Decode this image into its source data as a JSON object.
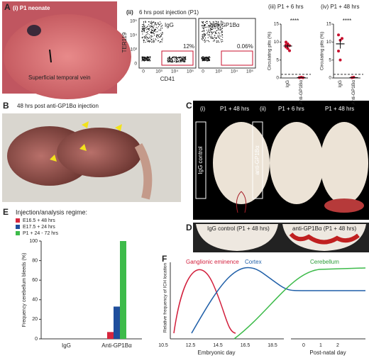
{
  "panels": {
    "A": {
      "label": "A",
      "i": "(i) P1 neonate",
      "vein": "Superficial temporal vein",
      "ii": "(ii)",
      "ii_title": "6 hrs post injection (P1)",
      "ylabel": "TER119",
      "xlabel": "CD41",
      "plot1": "IgG",
      "plot2": "anti-GP1Bα",
      "pct1": "12%",
      "pct2": "0.06%",
      "yticks": [
        "10⁵",
        "10⁴",
        "10³",
        "0"
      ],
      "xticks": [
        "0",
        "10³",
        "10⁴",
        "10⁵"
      ]
    },
    "B": {
      "label": "B",
      "title": "48 hrs post anti-GP1Bα injection"
    },
    "C": {
      "label": "C",
      "i": "(i)",
      "ii": "(ii)",
      "t1": "P1 + 48 hrs",
      "t2": "P1 + 6 hrs",
      "t3": "P1 + 48 hrs",
      "row1": "IgG control",
      "row2": "anti-GP1Bα"
    },
    "D": {
      "label": "D",
      "t1": "IgG control (P1 + 48 hrs)",
      "t2": "anti-GP1Bα (P1 + 48 hrs)"
    },
    "E": {
      "label": "E"
    },
    "F": {
      "label": "F",
      "ylabel": "Relative frequency of ICH location",
      "curves": [
        "Ganglionic eminence",
        "Cortex",
        "Cerebellum"
      ],
      "embryonic_ticks": [
        10.5,
        12.5,
        14.5,
        16.5,
        18.5
      ],
      "postnatal_ticks": [
        0,
        1,
        2
      ],
      "xlabel1": "Embryonic day",
      "xlabel2": "Post-natal day"
    }
  },
  "chart_data": [
    {
      "type": "dot",
      "title": "(iii) P1 + 6 hrs",
      "ylabel": "Circulating plts (%)",
      "categories": [
        "IgG",
        "Anti-GP1Bα"
      ],
      "points": [
        [
          10,
          9.5,
          9,
          8.6,
          8.2,
          7.6,
          9.2
        ],
        [
          0.1,
          0.2,
          0.1,
          0.1
        ]
      ],
      "means": [
        8.9,
        0.1
      ],
      "errors": [
        0.5,
        0.05
      ],
      "color": "#c8102e",
      "ylim": [
        0,
        15
      ],
      "yticks": [
        0,
        5,
        10,
        15
      ],
      "threshold": 1,
      "annotation": "****"
    },
    {
      "type": "dot",
      "title": "(iv) P1 + 48 hrs",
      "ylabel": "Circulating plts (%)",
      "categories": [
        "IgG",
        "Anti-GP1Bα"
      ],
      "points": [
        [
          12,
          10.5,
          11,
          7.5,
          5
        ],
        [
          0.1,
          0.2
        ]
      ],
      "means": [
        9.5,
        0.1
      ],
      "errors": [
        1.3,
        0.05
      ],
      "color": "#c8102e",
      "ylim": [
        0,
        15
      ],
      "yticks": [
        0,
        5,
        10,
        15
      ],
      "threshold": 1,
      "annotation": "****"
    },
    {
      "type": "bar",
      "title": "Injection/analysis regime:",
      "ylabel": "Frequency cerebellum bleeds (%)",
      "categories": [
        "IgG",
        "Anti-GP1Bα"
      ],
      "series": [
        {
          "name": "E16.5 + 48 hrs",
          "color": "#d7263d",
          "values": [
            0,
            7
          ]
        },
        {
          "name": "E17.5 + 24 hrs",
          "color": "#1f4e9c",
          "values": [
            0,
            33
          ]
        },
        {
          "name": "P1 + 24 - 72 hrs",
          "color": "#3dbb4a",
          "values": [
            0,
            100
          ]
        }
      ],
      "ylim": [
        0,
        100
      ],
      "yticks": [
        0,
        20,
        40,
        60,
        80,
        100
      ]
    }
  ]
}
